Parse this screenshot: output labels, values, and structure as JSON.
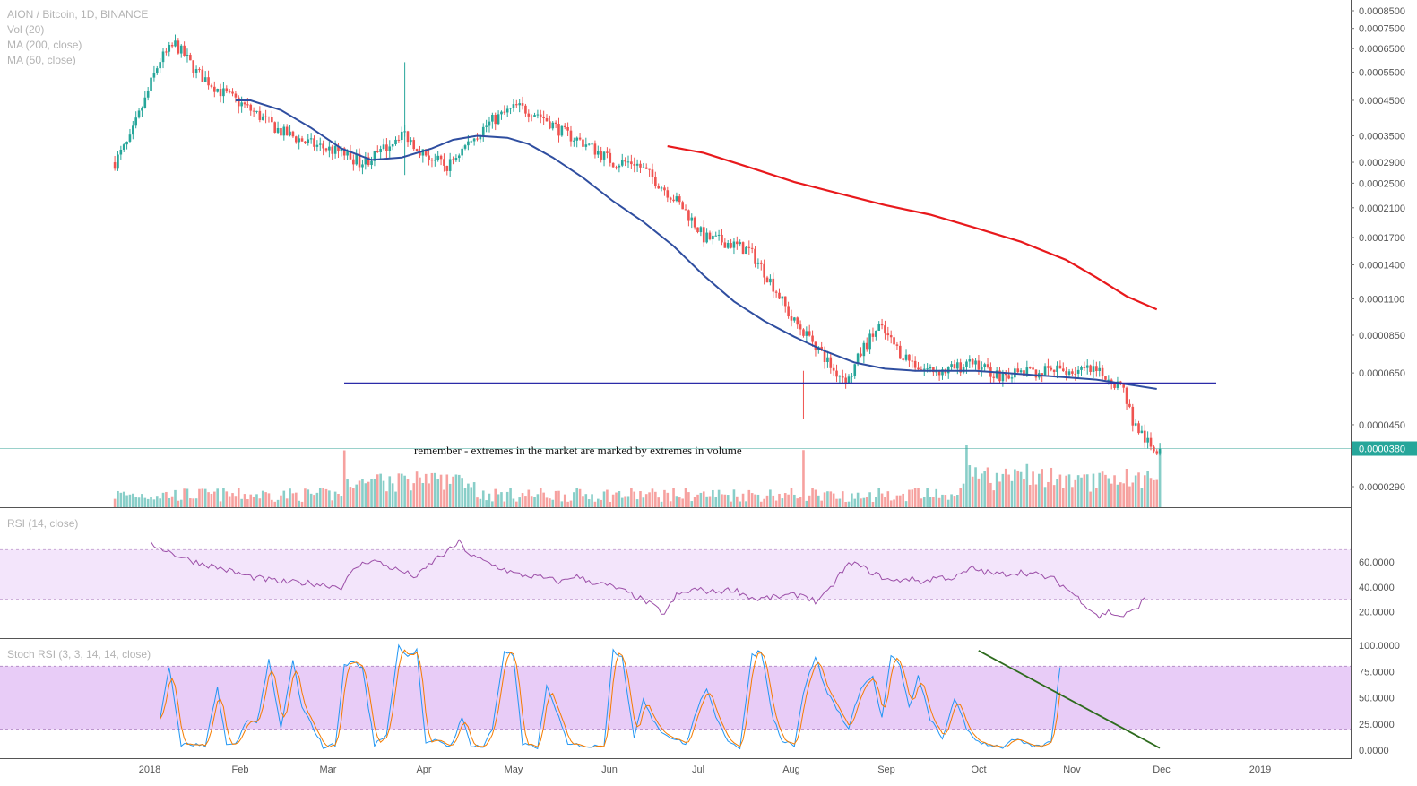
{
  "header": {
    "symbol": "AION / Bitcoin, 1D, BINANCE",
    "indicators": [
      "Vol (20)",
      "MA (200, close)",
      "MA (50, close)"
    ]
  },
  "annotation": "remember - extremes in the market are marked by extremes in volume",
  "colors": {
    "up": "#26a69a",
    "down": "#ef5350",
    "ma50": "#2f4ea0",
    "ma200": "#e8191c",
    "hline": "#2b2ba8",
    "rsi": "#9c4fa8",
    "stoch_k": "#2196f3",
    "stoch_d": "#f57c00",
    "trend": "#2e6b1e",
    "badge": "#26a69a"
  },
  "chart_data": [
    {
      "type": "candlestick",
      "pane": "price",
      "scale": "log",
      "y_ticks": [
        "0.0008500",
        "0.0007500",
        "0.0006500",
        "0.0005500",
        "0.0004500",
        "0.0003500",
        "0.0002900",
        "0.0002500",
        "0.0002100",
        "0.0001700",
        "0.0001400",
        "0.0001100",
        "0.0000850",
        "0.0000650",
        "0.0000450",
        "0.0000290"
      ],
      "x_ticks": [
        "2018",
        "Feb",
        "Mar",
        "Apr",
        "May",
        "Jun",
        "Jul",
        "Aug",
        "Sep",
        "Oct",
        "Nov",
        "Dec",
        "2019"
      ],
      "last_price": "0.0000380",
      "support_level": 6.05e-05,
      "close_path": [
        [
          0,
          0.00029
        ],
        [
          5,
          0.00034
        ],
        [
          10,
          0.00045
        ],
        [
          15,
          0.0006
        ],
        [
          20,
          0.00067
        ],
        [
          27,
          0.00055
        ],
        [
          35,
          0.00048
        ],
        [
          45,
          0.00042
        ],
        [
          55,
          0.00036
        ],
        [
          65,
          0.00033
        ],
        [
          75,
          0.00031
        ],
        [
          82,
          0.00029
        ],
        [
          88,
          0.00031
        ],
        [
          95,
          0.00036
        ],
        [
          102,
          0.00031
        ],
        [
          110,
          0.00028
        ],
        [
          118,
          0.00034
        ],
        [
          125,
          0.00039
        ],
        [
          133,
          0.00043
        ],
        [
          140,
          0.00041
        ],
        [
          148,
          0.00036
        ],
        [
          156,
          0.00033
        ],
        [
          165,
          0.00029
        ],
        [
          172,
          0.00029
        ],
        [
          180,
          0.00025
        ],
        [
          188,
          0.00021
        ],
        [
          195,
          0.00017
        ],
        [
          202,
          0.000165
        ],
        [
          210,
          0.000155
        ],
        [
          217,
          0.000125
        ],
        [
          224,
          9.5e-05
        ],
        [
          231,
          8.2e-05
        ],
        [
          238,
          6.6e-05
        ],
        [
          243,
          6.2e-05
        ],
        [
          248,
          7.8e-05
        ],
        [
          253,
          9e-05
        ],
        [
          260,
          7.5e-05
        ],
        [
          267,
          6.7e-05
        ],
        [
          275,
          6.6e-05
        ],
        [
          285,
          7e-05
        ],
        [
          292,
          6.4e-05
        ],
        [
          300,
          6.5e-05
        ],
        [
          310,
          6.6e-05
        ],
        [
          318,
          6.6e-05
        ],
        [
          323,
          6.6e-05
        ],
        [
          329,
          6.3e-05
        ],
        [
          334,
          5.8e-05
        ],
        [
          337,
          4.6e-05
        ],
        [
          340,
          4.2e-05
        ],
        [
          343,
          3.8e-05
        ],
        [
          346,
          3.8e-05
        ]
      ],
      "ma50": [
        [
          40,
          0.00045
        ],
        [
          45,
          0.00045
        ],
        [
          55,
          0.00042
        ],
        [
          65,
          0.00037
        ],
        [
          75,
          0.00032
        ],
        [
          85,
          0.000295
        ],
        [
          95,
          0.0003
        ],
        [
          105,
          0.00032
        ],
        [
          112,
          0.00034
        ],
        [
          120,
          0.00035
        ],
        [
          130,
          0.000345
        ],
        [
          137,
          0.00033
        ],
        [
          145,
          0.0003
        ],
        [
          155,
          0.00026
        ],
        [
          165,
          0.00022
        ],
        [
          175,
          0.00019
        ],
        [
          185,
          0.00016
        ],
        [
          195,
          0.00013
        ],
        [
          205,
          0.000108
        ],
        [
          215,
          9.4e-05
        ],
        [
          225,
          8.4e-05
        ],
        [
          235,
          7.6e-05
        ],
        [
          245,
          7e-05
        ],
        [
          255,
          6.7e-05
        ],
        [
          265,
          6.6e-05
        ],
        [
          275,
          6.6e-05
        ],
        [
          285,
          6.6e-05
        ],
        [
          295,
          6.5e-05
        ],
        [
          305,
          6.4e-05
        ],
        [
          315,
          6.3e-05
        ],
        [
          325,
          6.2e-05
        ],
        [
          335,
          6e-05
        ],
        [
          345,
          5.8e-05
        ]
      ],
      "ma200": [
        [
          183,
          0.000325
        ],
        [
          195,
          0.00031
        ],
        [
          210,
          0.00028
        ],
        [
          225,
          0.000252
        ],
        [
          240,
          0.000232
        ],
        [
          255,
          0.000214
        ],
        [
          270,
          0.0002
        ],
        [
          285,
          0.000182
        ],
        [
          300,
          0.000165
        ],
        [
          315,
          0.000145
        ],
        [
          325,
          0.000128
        ],
        [
          335,
          0.000112
        ],
        [
          345,
          0.000102
        ]
      ],
      "volume_spikes": [
        [
          76,
          "high"
        ],
        [
          228,
          "high"
        ],
        [
          282,
          "extreme"
        ],
        [
          346,
          "high"
        ]
      ]
    },
    {
      "type": "line",
      "pane": "RSI (14, close)",
      "name": "RSI (14, close)",
      "y_ticks": [
        "60.0000",
        "40.0000",
        "20.0000"
      ],
      "band": [
        30,
        70
      ],
      "points": [
        [
          12,
          74
        ],
        [
          15,
          72
        ],
        [
          20,
          66
        ],
        [
          27,
          60
        ],
        [
          35,
          55
        ],
        [
          45,
          48
        ],
        [
          55,
          44
        ],
        [
          65,
          43
        ],
        [
          75,
          40
        ],
        [
          80,
          56
        ],
        [
          85,
          62
        ],
        [
          92,
          55
        ],
        [
          100,
          48
        ],
        [
          106,
          62
        ],
        [
          110,
          68
        ],
        [
          114,
          76
        ],
        [
          118,
          65
        ],
        [
          125,
          58
        ],
        [
          133,
          50
        ],
        [
          140,
          48
        ],
        [
          148,
          44
        ],
        [
          152,
          49
        ],
        [
          158,
          44
        ],
        [
          165,
          40
        ],
        [
          172,
          33
        ],
        [
          178,
          25
        ],
        [
          182,
          18
        ],
        [
          186,
          33
        ],
        [
          192,
          38
        ],
        [
          198,
          36
        ],
        [
          205,
          38
        ],
        [
          212,
          30
        ],
        [
          220,
          32
        ],
        [
          228,
          34
        ],
        [
          232,
          28
        ],
        [
          236,
          35
        ],
        [
          240,
          50
        ],
        [
          244,
          60
        ],
        [
          248,
          55
        ],
        [
          252,
          50
        ],
        [
          258,
          44
        ],
        [
          262,
          47
        ],
        [
          268,
          44
        ],
        [
          272,
          48
        ],
        [
          278,
          47
        ],
        [
          284,
          55
        ],
        [
          288,
          52
        ],
        [
          293,
          50
        ],
        [
          300,
          52
        ],
        [
          305,
          50
        ],
        [
          311,
          46
        ],
        [
          315,
          39
        ],
        [
          320,
          29
        ],
        [
          323,
          22
        ],
        [
          326,
          16
        ],
        [
          329,
          20
        ],
        [
          333,
          16
        ],
        [
          337,
          20
        ],
        [
          341,
          30
        ]
      ]
    },
    {
      "type": "line",
      "pane": "Stoch RSI (3, 3, 14, 14, close)",
      "name": "Stoch RSI (3, 3, 14, 14, close)",
      "y_ticks": [
        "100.0000",
        "75.0000",
        "50.0000",
        "25.0000",
        "0.0000"
      ],
      "band": [
        20,
        80
      ],
      "k": [
        [
          15,
          30
        ],
        [
          18,
          80
        ],
        [
          22,
          5
        ],
        [
          27,
          5
        ],
        [
          30,
          3
        ],
        [
          34,
          60
        ],
        [
          37,
          5
        ],
        [
          40,
          5
        ],
        [
          44,
          30
        ],
        [
          47,
          25
        ],
        [
          51,
          85
        ],
        [
          55,
          20
        ],
        [
          59,
          85
        ],
        [
          62,
          40
        ],
        [
          66,
          20
        ],
        [
          69,
          3
        ],
        [
          73,
          5
        ],
        [
          76,
          80
        ],
        [
          79,
          85
        ],
        [
          82,
          78
        ],
        [
          86,
          5
        ],
        [
          90,
          15
        ],
        [
          94,
          100
        ],
        [
          97,
          90
        ],
        [
          100,
          95
        ],
        [
          103,
          5
        ],
        [
          107,
          10
        ],
        [
          111,
          3
        ],
        [
          115,
          30
        ],
        [
          118,
          5
        ],
        [
          122,
          3
        ],
        [
          125,
          20
        ],
        [
          129,
          95
        ],
        [
          132,
          90
        ],
        [
          135,
          5
        ],
        [
          140,
          3
        ],
        [
          143,
          60
        ],
        [
          146,
          40
        ],
        [
          150,
          5
        ],
        [
          154,
          5
        ],
        [
          158,
          3
        ],
        [
          162,
          5
        ],
        [
          165,
          95
        ],
        [
          168,
          90
        ],
        [
          172,
          10
        ],
        [
          175,
          50
        ],
        [
          178,
          30
        ],
        [
          182,
          15
        ],
        [
          186,
          10
        ],
        [
          189,
          5
        ],
        [
          193,
          40
        ],
        [
          196,
          60
        ],
        [
          199,
          30
        ],
        [
          203,
          10
        ],
        [
          207,
          3
        ],
        [
          211,
          90
        ],
        [
          214,
          95
        ],
        [
          218,
          30
        ],
        [
          221,
          10
        ],
        [
          225,
          5
        ],
        [
          228,
          55
        ],
        [
          232,
          90
        ],
        [
          235,
          60
        ],
        [
          239,
          40
        ],
        [
          243,
          20
        ],
        [
          247,
          60
        ],
        [
          251,
          70
        ],
        [
          254,
          30
        ],
        [
          257,
          90
        ],
        [
          260,
          80
        ],
        [
          263,
          40
        ],
        [
          266,
          70
        ],
        [
          270,
          30
        ],
        [
          274,
          10
        ],
        [
          278,
          50
        ],
        [
          282,
          20
        ],
        [
          286,
          8
        ],
        [
          290,
          5
        ],
        [
          294,
          3
        ],
        [
          298,
          10
        ],
        [
          302,
          5
        ],
        [
          306,
          3
        ],
        [
          310,
          8
        ],
        [
          313,
          80
        ]
      ],
      "trendline": [
        [
          286,
          95
        ],
        [
          346,
          2
        ]
      ]
    }
  ]
}
